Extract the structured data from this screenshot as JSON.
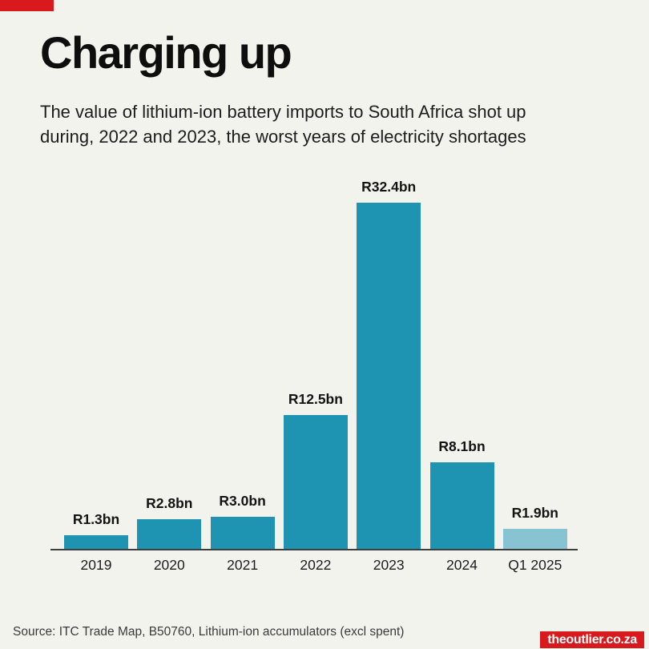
{
  "page": {
    "background_color": "#f3f3ed",
    "accent_color": "#d8191d"
  },
  "header": {
    "title": "Charging up",
    "subtitle_line1": "The value of lithium-ion battery imports to South Africa shot up",
    "subtitle_line2": "during, 2022 and 2023, the worst years of electricity shortages"
  },
  "chart_data": {
    "type": "bar",
    "title": "Charging up",
    "subtitle": "The value of lithium-ion battery imports to South Africa shot up during, 2022 and 2023, the worst years of electricity shortages",
    "categories": [
      "2019",
      "2020",
      "2021",
      "2022",
      "2023",
      "2024",
      "Q1 2025"
    ],
    "values": [
      1.3,
      2.8,
      3.0,
      12.5,
      32.4,
      8.1,
      1.9
    ],
    "value_labels": [
      "R1.3bn",
      "R2.8bn",
      "R3.0bn",
      "R12.5bn",
      "R32.4bn",
      "R8.1bn",
      "R1.9bn"
    ],
    "unit": "R bn (South African rand, billions)",
    "bar_colors": [
      "#1f94b2",
      "#1f94b2",
      "#1f94b2",
      "#1f94b2",
      "#1f94b2",
      "#1f94b2",
      "#87c3d2"
    ],
    "main_bar_color": "#1f94b2",
    "highlight_bar_color": "#87c3d2",
    "axis_line_color": "#3d3d3d",
    "xlabel": "",
    "ylabel": "",
    "ylim": [
      0,
      32.4
    ],
    "grid": false,
    "legend_position": "none"
  },
  "footer": {
    "source": "Source: ITC Trade Map, B50760, Lithium-ion accumulators (excl spent)",
    "brand": "theoutlier.co.za"
  }
}
